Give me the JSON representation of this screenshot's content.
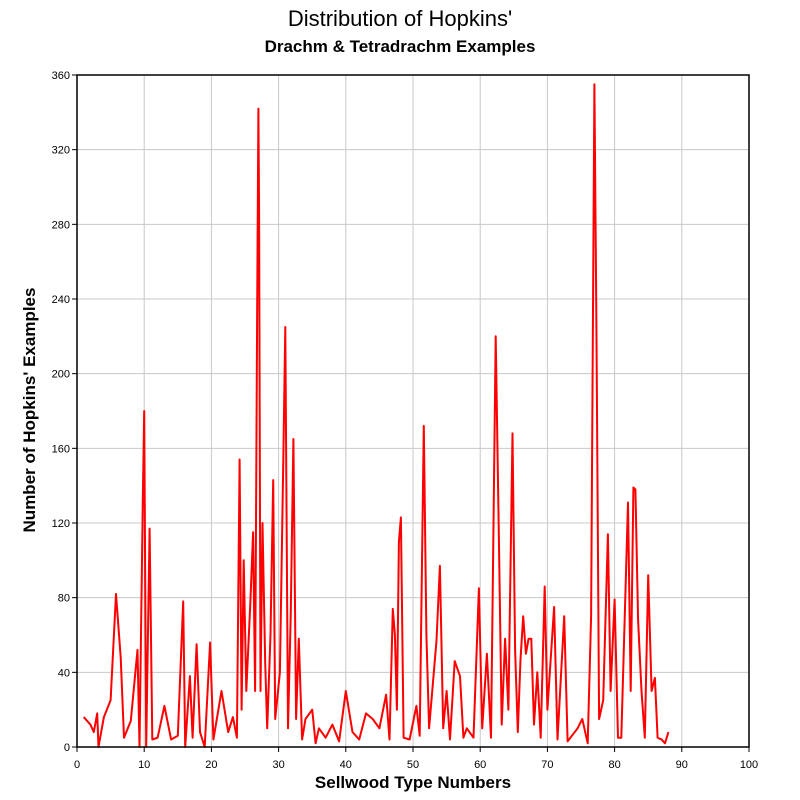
{
  "chart_data": {
    "type": "line",
    "title": "Distribution of Hopkins'",
    "subtitle": "Drachm & Tetradrachm Examples",
    "xlabel": "Sellwood Type Numbers",
    "ylabel": "Number of Hopkins' Examples",
    "xlim": [
      0,
      100
    ],
    "ylim": [
      0,
      360
    ],
    "xticks": [
      0,
      10,
      20,
      30,
      40,
      50,
      60,
      70,
      80,
      90,
      100
    ],
    "yticks": [
      0,
      40,
      80,
      120,
      160,
      200,
      240,
      280,
      320,
      360
    ],
    "grid": true,
    "series": [
      {
        "color": "#ff0000",
        "points": [
          [
            1,
            16
          ],
          [
            2,
            12
          ],
          [
            2.5,
            8
          ],
          [
            3,
            18
          ],
          [
            3.2,
            0
          ],
          [
            4,
            16
          ],
          [
            5,
            25
          ],
          [
            5.8,
            82
          ],
          [
            6.5,
            48
          ],
          [
            7,
            5
          ],
          [
            8,
            14
          ],
          [
            9,
            52
          ],
          [
            9.3,
            0
          ],
          [
            9.8,
            136
          ],
          [
            10,
            180
          ],
          [
            10.3,
            0
          ],
          [
            10.8,
            117
          ],
          [
            11.2,
            4
          ],
          [
            12,
            5
          ],
          [
            13,
            22
          ],
          [
            14,
            4
          ],
          [
            15,
            6
          ],
          [
            15.8,
            78
          ],
          [
            16.1,
            0
          ],
          [
            16.8,
            38
          ],
          [
            17.2,
            5
          ],
          [
            17.8,
            55
          ],
          [
            18.3,
            8
          ],
          [
            19,
            0
          ],
          [
            19.8,
            56
          ],
          [
            20.3,
            4
          ],
          [
            21.5,
            30
          ],
          [
            22.5,
            8
          ],
          [
            23.2,
            16
          ],
          [
            23.8,
            5
          ],
          [
            24.2,
            154
          ],
          [
            24.5,
            20
          ],
          [
            24.8,
            100
          ],
          [
            25.2,
            30
          ],
          [
            25.8,
            78
          ],
          [
            26.2,
            115
          ],
          [
            26.5,
            30
          ],
          [
            26.8,
            228
          ],
          [
            27,
            342
          ],
          [
            27.1,
            285
          ],
          [
            27.3,
            30
          ],
          [
            27.6,
            120
          ],
          [
            28,
            45
          ],
          [
            28.3,
            10
          ],
          [
            28.8,
            60
          ],
          [
            29.2,
            143
          ],
          [
            29.5,
            15
          ],
          [
            30.2,
            40
          ],
          [
            30.7,
            154
          ],
          [
            31,
            225
          ],
          [
            31.4,
            10
          ],
          [
            31.8,
            70
          ],
          [
            32.2,
            165
          ],
          [
            32.6,
            15
          ],
          [
            33,
            58
          ],
          [
            33.5,
            4
          ],
          [
            34,
            15
          ],
          [
            35,
            20
          ],
          [
            35.5,
            2
          ],
          [
            36,
            10
          ],
          [
            37,
            5
          ],
          [
            38,
            12
          ],
          [
            39,
            3
          ],
          [
            40,
            30
          ],
          [
            41,
            8
          ],
          [
            42,
            4
          ],
          [
            43,
            18
          ],
          [
            44,
            15
          ],
          [
            45,
            10
          ],
          [
            46,
            28
          ],
          [
            46.5,
            4
          ],
          [
            47,
            74
          ],
          [
            47.3,
            60
          ],
          [
            47.6,
            20
          ],
          [
            47.9,
            110
          ],
          [
            48.2,
            123
          ],
          [
            48.6,
            5
          ],
          [
            49.5,
            4
          ],
          [
            50.5,
            22
          ],
          [
            51,
            6
          ],
          [
            51.6,
            172
          ],
          [
            52,
            60
          ],
          [
            52.4,
            10
          ],
          [
            53.5,
            57
          ],
          [
            54,
            97
          ],
          [
            54.5,
            10
          ],
          [
            55,
            30
          ],
          [
            55.5,
            4
          ],
          [
            56.2,
            46
          ],
          [
            57,
            38
          ],
          [
            57.5,
            5
          ],
          [
            58,
            10
          ],
          [
            59,
            5
          ],
          [
            59.8,
            85
          ],
          [
            60.3,
            10
          ],
          [
            61,
            50
          ],
          [
            61.6,
            5
          ],
          [
            62.3,
            220
          ],
          [
            62.8,
            108
          ],
          [
            63.2,
            12
          ],
          [
            63.7,
            58
          ],
          [
            64.2,
            20
          ],
          [
            64.8,
            168
          ],
          [
            65.2,
            52
          ],
          [
            65.6,
            8
          ],
          [
            66,
            47
          ],
          [
            66.4,
            70
          ],
          [
            66.8,
            50
          ],
          [
            67.2,
            58
          ],
          [
            67.6,
            58
          ],
          [
            68,
            12
          ],
          [
            68.5,
            40
          ],
          [
            69,
            5
          ],
          [
            69.6,
            86
          ],
          [
            70,
            20
          ],
          [
            71,
            75
          ],
          [
            71.5,
            4
          ],
          [
            72.5,
            70
          ],
          [
            73,
            3
          ],
          [
            74.5,
            10
          ],
          [
            75.2,
            15
          ],
          [
            76,
            2
          ],
          [
            76.5,
            70
          ],
          [
            77,
            355
          ],
          [
            77.3,
            220
          ],
          [
            77.7,
            15
          ],
          [
            78.3,
            25
          ],
          [
            79,
            114
          ],
          [
            79.4,
            30
          ],
          [
            80,
            79
          ],
          [
            80.5,
            5
          ],
          [
            81,
            5
          ],
          [
            82,
            131
          ],
          [
            82.4,
            30
          ],
          [
            82.8,
            139
          ],
          [
            83.1,
            138
          ],
          [
            83.5,
            68
          ],
          [
            84,
            30
          ],
          [
            84.5,
            5
          ],
          [
            85,
            92
          ],
          [
            85.5,
            30
          ],
          [
            86,
            37
          ],
          [
            86.4,
            5
          ],
          [
            87,
            4
          ],
          [
            87.5,
            2
          ],
          [
            88,
            8
          ]
        ]
      }
    ]
  }
}
